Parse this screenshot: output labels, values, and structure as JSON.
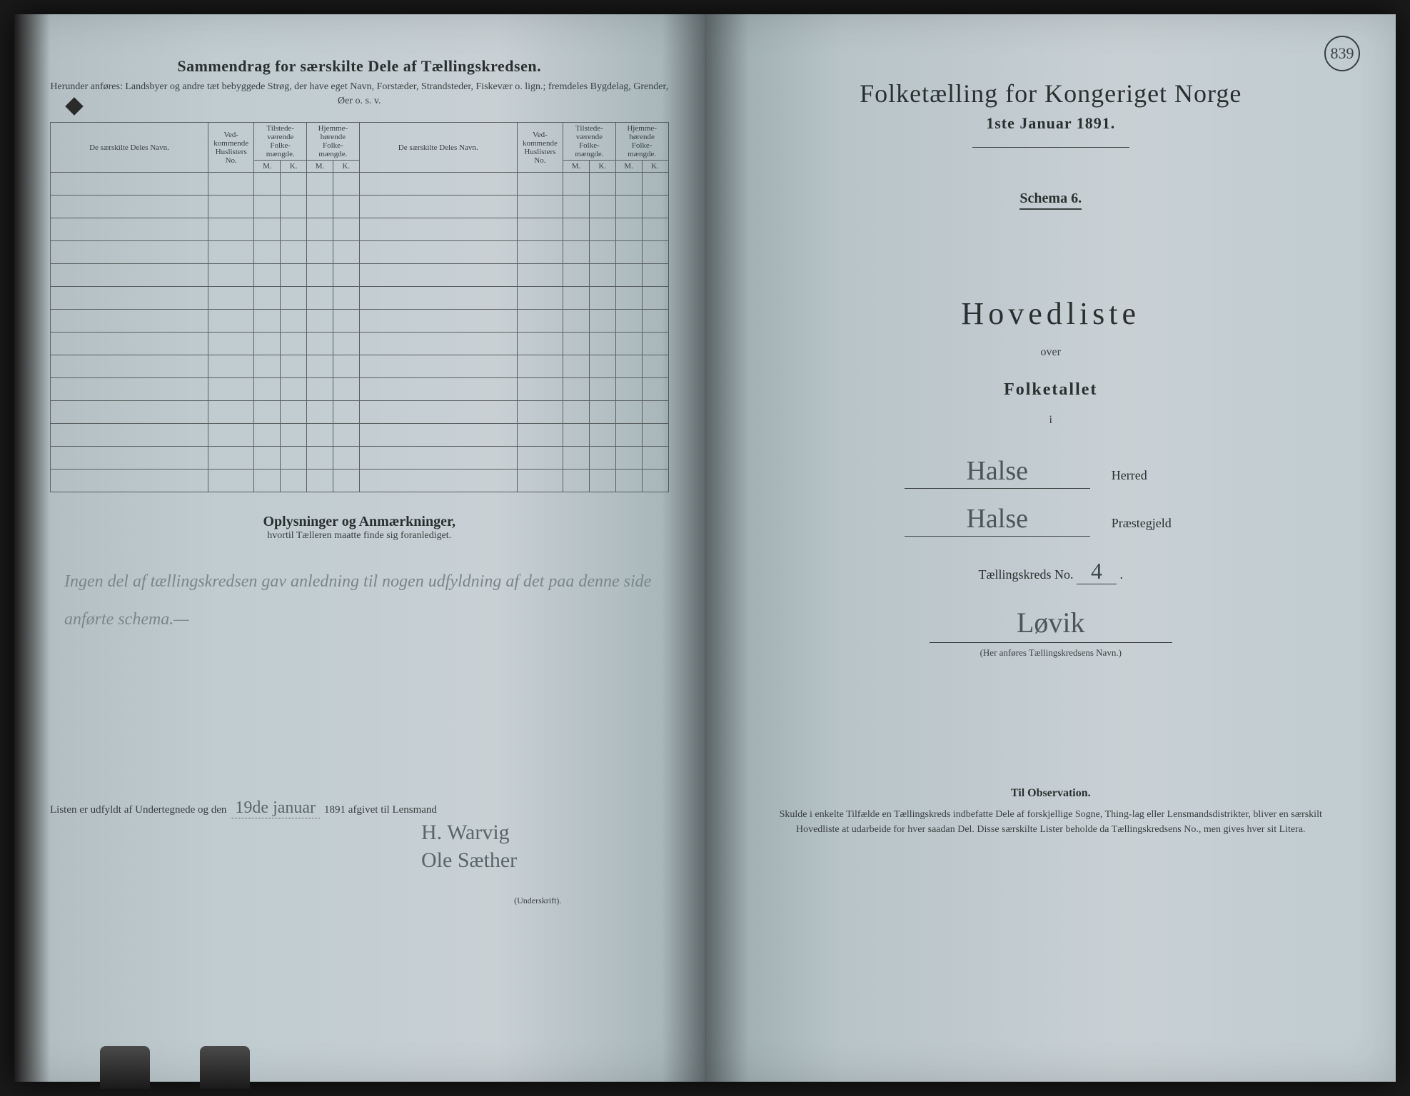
{
  "page_number": "839",
  "left": {
    "title": "Sammendrag for særskilte Dele af Tællingskredsen.",
    "subtitle": "Herunder anføres: Landsbyer og andre tæt bebyggede Strøg, der have eget Navn, Forstæder, Strandsteder, Fiskevær o. lign.; fremdeles Bygdelag, Grender, Øer o. s. v.",
    "table": {
      "col_names": "De særskilte Deles Navn.",
      "col_husl": "Ved-kommende Huslisters No.",
      "col_tilst": "Tilstede-værende Folke-mængde.",
      "col_hjemme": "Hjemme-hørende Folke-mængde.",
      "mk_m": "M.",
      "mk_k": "K.",
      "row_count": 14
    },
    "remarks_title": "Oplysninger og Anmærkninger,",
    "remarks_sub": "hvortil Tælleren maatte finde sig foranlediget.",
    "handwriting": "Ingen del af tællingskredsen gav anledning til nogen udfyldning af det paa denne side anførte schema.—",
    "sign": {
      "prefix": "Listen er udfyldt af Undertegnede og den",
      "date_hw": "19de januar",
      "year": "1891 afgivet til Lensmand",
      "sig1": "H. Warvig",
      "sig2": "Ole Sæther",
      "underskrift": "(Underskrift)."
    }
  },
  "right": {
    "title": "Folketælling for Kongeriget Norge",
    "date": "1ste Januar 1891.",
    "schema": "Schema 6.",
    "hovedliste": "Hovedliste",
    "over": "over",
    "folketallet": "Folketallet",
    "i": "i",
    "herred_hw": "Halse",
    "herred_label": "Herred",
    "praeste_hw": "Halse",
    "praeste_label": "Præstegjeld",
    "tkreds_label": "Tællingskreds No.",
    "tkreds_no": "4",
    "kreds_name": "Løvik",
    "kreds_sub": "(Her anføres Tællingskredsens Navn.)",
    "obs_title": "Til Observation.",
    "obs_text": "Skulde i enkelte Tilfælde en Tællingskreds indbefatte Dele af forskjellige Sogne, Thing-lag eller Lensmandsdistrikter, bliver en særskilt Hovedliste at udarbeide for hver saadan Del. Disse særskilte Lister beholde da Tællingskredsens No., men gives hver sit Litera."
  },
  "colors": {
    "paper": "#c8d0d4",
    "ink": "#2a3030",
    "faded_ink": "#5a6668",
    "rule": "#5a6060"
  }
}
